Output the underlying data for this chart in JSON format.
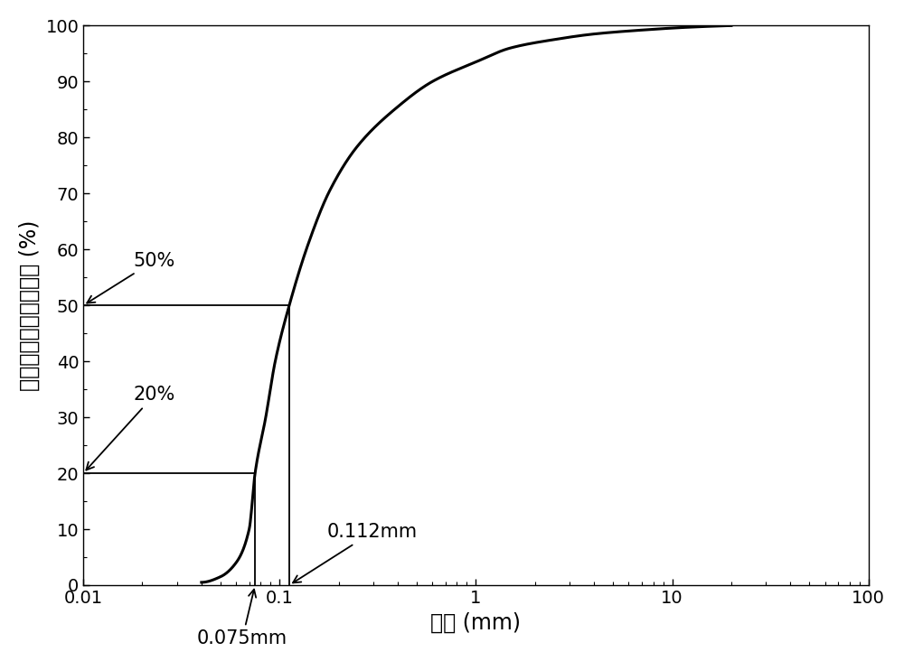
{
  "title": "",
  "xlabel": "粒径 (mm)",
  "ylabel": "小于某粒径的土粒含量 (%)",
  "xlim": [
    0.01,
    100
  ],
  "ylim": [
    0,
    100
  ],
  "x_points": [
    0.04,
    0.05,
    0.06,
    0.07,
    0.075,
    0.085,
    0.095,
    0.112,
    0.14,
    0.18,
    0.25,
    0.4,
    0.6,
    1.0,
    1.5,
    2.5,
    4.0,
    7.0,
    12.0,
    20.0
  ],
  "y_points": [
    0.5,
    1.5,
    4.0,
    10.0,
    20.0,
    30.0,
    40.0,
    50.0,
    61.0,
    70.5,
    78.5,
    85.5,
    90.0,
    93.5,
    96.0,
    97.5,
    98.5,
    99.2,
    99.7,
    100.0
  ],
  "line_color": "#000000",
  "line_width": 2.2,
  "bg_color": "#ffffff",
  "tick_color": "#000000",
  "axis_color": "#000000",
  "font_size_label": 17,
  "font_size_tick": 14,
  "font_size_annotation": 15
}
